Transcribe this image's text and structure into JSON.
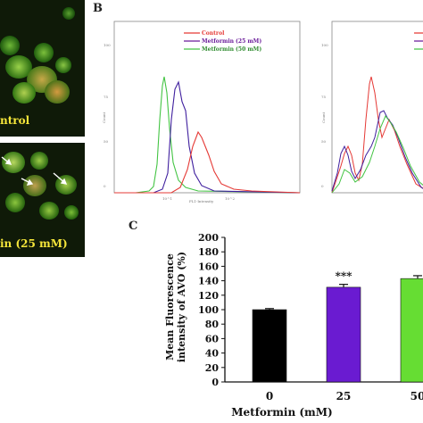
{
  "panel_b": {
    "letter": "B",
    "legend": [
      {
        "label": "Control",
        "color": "#e53935"
      },
      {
        "label": "Metformin (25 mM)",
        "color": "#6a1b9a"
      },
      {
        "label": "Metformin (50 mM)",
        "color": "#43c443"
      }
    ]
  },
  "panel_a": {
    "label_top": "ntrol",
    "label_bottom": "in (25 mM)"
  },
  "panel_c": {
    "letter": "C"
  },
  "chart_data": {
    "type": "bar",
    "categories": [
      "0",
      "25",
      "50"
    ],
    "values": [
      100,
      131,
      143
    ],
    "errors": [
      1.5,
      4,
      4
    ],
    "colors": [
      "#000000",
      "#6a1bd1",
      "#66dd33"
    ],
    "annotations": [
      "",
      "***",
      ""
    ],
    "ylabel": "Mean Fluorescence intensity of AVO (%)",
    "xlabel": "Metformin (mM)",
    "ylim": [
      0,
      200
    ],
    "yticks": [
      0,
      20,
      40,
      60,
      80,
      100,
      120,
      140,
      160,
      180,
      200
    ]
  }
}
